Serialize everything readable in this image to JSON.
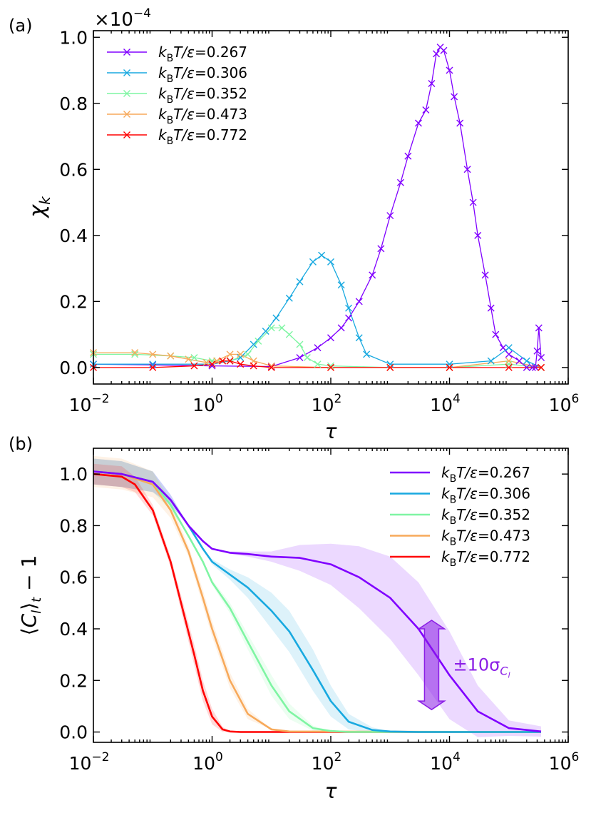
{
  "colors": {
    "t0267": "#8000ff",
    "t0306": "#18a9e0",
    "t0352": "#7ff5a3",
    "t0473": "#f7a95a",
    "t0772": "#ff0000",
    "annotation": "#8b1ee6"
  },
  "chart_data": [
    {
      "type": "line",
      "panel_label": "(a)",
      "title": "",
      "xlabel": "τ",
      "ylabel": "χ_k",
      "x_scale": "log",
      "xlim": [
        0.01,
        1000000
      ],
      "ylim": [
        -0.05,
        1.02
      ],
      "y_multiplier": "×10",
      "y_multiplier_exponent": "−4",
      "x_ticks": [
        0.01,
        1,
        100,
        10000,
        1000000
      ],
      "x_tick_labels": [
        {
          "base": "10",
          "exp": "−2"
        },
        {
          "base": "10",
          "exp": "0"
        },
        {
          "base": "10",
          "exp": "2"
        },
        {
          "base": "10",
          "exp": "4"
        },
        {
          "base": "10",
          "exp": "6"
        }
      ],
      "y_ticks": [
        0,
        0.2,
        0.4,
        0.6,
        0.8,
        1.0
      ],
      "y_tick_labels": [
        "0.0",
        "0.2",
        "0.4",
        "0.6",
        "0.8",
        "1.0"
      ],
      "legend_position": "top-left",
      "marker": "x",
      "series": [
        {
          "name": "k_B T/ε=0.267",
          "label_prefix": "k",
          "label_sub": "B",
          "label_mid": "T/ε=",
          "label_value": "0.267",
          "color_key": "t0267",
          "x": [
            0.01,
            0.1,
            1,
            10,
            30,
            60,
            100,
            150,
            200,
            300,
            500,
            700,
            1000,
            1500,
            2000,
            3000,
            4000,
            5000,
            6000,
            7000,
            8000,
            10000,
            12000,
            15000,
            20000,
            25000,
            30000,
            40000,
            50000,
            60000,
            80000,
            100000,
            150000,
            200000,
            250000,
            280000,
            300000,
            320000,
            350000
          ],
          "y": [
            0.01,
            0.008,
            0.005,
            0.003,
            0.03,
            0.06,
            0.09,
            0.12,
            0.15,
            0.2,
            0.28,
            0.36,
            0.46,
            0.56,
            0.64,
            0.74,
            0.78,
            0.86,
            0.95,
            0.97,
            0.96,
            0.9,
            0.82,
            0.74,
            0.6,
            0.5,
            0.4,
            0.28,
            0.18,
            0.1,
            0.06,
            0.04,
            0.02,
            0.0,
            0.0,
            0.0,
            0.05,
            0.12,
            0.03
          ]
        },
        {
          "name": "k_B T/ε=0.306",
          "label_prefix": "k",
          "label_sub": "B",
          "label_mid": "T/ε=",
          "label_value": "0.306",
          "color_key": "t0306",
          "x": [
            0.01,
            0.1,
            1,
            2,
            3,
            5,
            8,
            12,
            20,
            30,
            50,
            70,
            100,
            150,
            200,
            300,
            400,
            1000,
            10000,
            50000,
            100000,
            200000,
            350000
          ],
          "y": [
            0.01,
            0.01,
            0.01,
            0.02,
            0.03,
            0.07,
            0.11,
            0.15,
            0.21,
            0.26,
            0.32,
            0.34,
            0.32,
            0.25,
            0.18,
            0.09,
            0.04,
            0.01,
            0.01,
            0.02,
            0.06,
            0.02,
            0.0
          ]
        },
        {
          "name": "k_B T/ε=0.352",
          "label_prefix": "k",
          "label_sub": "B",
          "label_mid": "T/ε=",
          "label_value": "0.352",
          "color_key": "t0352",
          "x": [
            0.01,
            0.05,
            0.2,
            0.5,
            1,
            2,
            4,
            6,
            10,
            15,
            20,
            30,
            40,
            60,
            100,
            1000,
            10000,
            100000,
            350000
          ],
          "y": [
            0.04,
            0.04,
            0.035,
            0.03,
            0.02,
            0.02,
            0.04,
            0.08,
            0.12,
            0.12,
            0.1,
            0.07,
            0.03,
            0.01,
            0.005,
            0.0,
            0.0,
            0.01,
            0.0
          ]
        },
        {
          "name": "k_B T/ε=0.473",
          "label_prefix": "k",
          "label_sub": "B",
          "label_mid": "T/ε=",
          "label_value": "0.473",
          "color_key": "t0473",
          "x": [
            0.01,
            0.05,
            0.1,
            0.2,
            0.4,
            0.8,
            1.2,
            2,
            3,
            5,
            10,
            100,
            1000,
            10000,
            100000,
            350000
          ],
          "y": [
            0.045,
            0.045,
            0.04,
            0.035,
            0.025,
            0.015,
            0.02,
            0.04,
            0.04,
            0.02,
            0.005,
            0.0,
            0.0,
            0.0,
            0.02,
            0.0
          ]
        },
        {
          "name": "k_B T/ε=0.772",
          "label_prefix": "k",
          "label_sub": "B",
          "label_mid": "T/ε=",
          "label_value": "0.772",
          "color_key": "t0772",
          "x": [
            0.01,
            0.1,
            0.5,
            1,
            1.5,
            2,
            3,
            5,
            10,
            100,
            1000,
            10000,
            100000,
            350000
          ],
          "y": [
            0.0,
            0.0,
            0.005,
            0.01,
            0.02,
            0.02,
            0.01,
            0.005,
            0.0,
            0.0,
            0.0,
            0.0,
            0.0,
            0.0
          ]
        }
      ]
    },
    {
      "type": "line",
      "panel_label": "(b)",
      "title": "",
      "xlabel": "τ",
      "ylabel": "⟨C_l⟩_t − 1",
      "x_scale": "log",
      "xlim": [
        0.01,
        1000000
      ],
      "ylim": [
        -0.04,
        1.1
      ],
      "x_ticks": [
        0.01,
        1,
        100,
        10000,
        1000000
      ],
      "x_tick_labels": [
        {
          "base": "10",
          "exp": "−2"
        },
        {
          "base": "10",
          "exp": "0"
        },
        {
          "base": "10",
          "exp": "2"
        },
        {
          "base": "10",
          "exp": "4"
        },
        {
          "base": "10",
          "exp": "6"
        }
      ],
      "y_ticks": [
        0,
        0.2,
        0.4,
        0.6,
        0.8,
        1.0
      ],
      "y_tick_labels": [
        "0.0",
        "0.2",
        "0.4",
        "0.6",
        "0.8",
        "1.0"
      ],
      "legend_position": "top-right",
      "band": "shaded ±10σ",
      "annotation": {
        "text": "±10σ",
        "sub": "C",
        "subsub": "l",
        "tau": 5000,
        "y_low": 0.12,
        "y_high": 0.4
      },
      "series": [
        {
          "name": "k_B T/ε=0.267",
          "label_prefix": "k",
          "label_sub": "B",
          "label_mid": "T/ε=",
          "label_value": "0.267",
          "color_key": "t0267",
          "x": [
            0.01,
            0.03,
            0.1,
            0.2,
            0.4,
            0.7,
            1,
            2,
            4,
            10,
            30,
            100,
            300,
            1000,
            3000,
            10000,
            30000,
            100000,
            350000
          ],
          "y": [
            1.01,
            1.0,
            0.97,
            0.9,
            0.8,
            0.74,
            0.71,
            0.695,
            0.69,
            0.68,
            0.675,
            0.65,
            0.6,
            0.52,
            0.4,
            0.22,
            0.08,
            0.015,
            0.002
          ],
          "band": [
            0.05,
            0.05,
            0.04,
            0.02,
            0.0,
            0.0,
            0.0,
            0.005,
            0.01,
            0.02,
            0.05,
            0.08,
            0.12,
            0.16,
            0.18,
            0.17,
            0.1,
            0.03,
            0.02
          ]
        },
        {
          "name": "k_B T/ε=0.306",
          "label_prefix": "k",
          "label_sub": "B",
          "label_mid": "T/ε=",
          "label_value": "0.306",
          "color_key": "t0306",
          "x": [
            0.01,
            0.03,
            0.1,
            0.2,
            0.4,
            0.7,
            1,
            2,
            4,
            10,
            20,
            50,
            100,
            200,
            500,
            1000,
            3000,
            350000
          ],
          "y": [
            1.01,
            1.0,
            0.97,
            0.9,
            0.8,
            0.71,
            0.66,
            0.61,
            0.56,
            0.47,
            0.39,
            0.24,
            0.12,
            0.04,
            0.008,
            0.002,
            0.0,
            0.0
          ],
          "band": [
            0.05,
            0.05,
            0.04,
            0.02,
            0.0,
            0.0,
            0.01,
            0.02,
            0.04,
            0.07,
            0.08,
            0.08,
            0.06,
            0.03,
            0.01,
            0.0,
            0.0,
            0.0
          ]
        },
        {
          "name": "k_B T/ε=0.352",
          "label_prefix": "k",
          "label_sub": "B",
          "label_mid": "T/ε=",
          "label_value": "0.352",
          "color_key": "t0352",
          "x": [
            0.01,
            0.03,
            0.1,
            0.2,
            0.4,
            0.7,
            1,
            2,
            4,
            10,
            20,
            50,
            100,
            200,
            350000
          ],
          "y": [
            1.01,
            1.0,
            0.97,
            0.88,
            0.76,
            0.66,
            0.58,
            0.48,
            0.35,
            0.18,
            0.08,
            0.015,
            0.004,
            0.0,
            0.0
          ],
          "band": [
            0.05,
            0.05,
            0.04,
            0.02,
            0.0,
            0.0,
            0.01,
            0.02,
            0.03,
            0.04,
            0.03,
            0.01,
            0.0,
            0.0,
            0.0
          ]
        },
        {
          "name": "k_B T/ε=0.473",
          "label_prefix": "k",
          "label_sub": "B",
          "label_mid": "T/ε=",
          "label_value": "0.473",
          "color_key": "t0473",
          "x": [
            0.01,
            0.03,
            0.1,
            0.2,
            0.4,
            0.7,
            1,
            2,
            4,
            10,
            20,
            350000
          ],
          "y": [
            1.01,
            1.0,
            0.96,
            0.86,
            0.7,
            0.52,
            0.4,
            0.2,
            0.07,
            0.01,
            0.002,
            0.0
          ],
          "band": [
            0.06,
            0.06,
            0.05,
            0.03,
            0.02,
            0.03,
            0.03,
            0.03,
            0.02,
            0.0,
            0.0,
            0.0
          ]
        },
        {
          "name": "k_B T/ε=0.772",
          "label_prefix": "k",
          "label_sub": "B",
          "label_mid": "T/ε=",
          "label_value": "0.772",
          "color_key": "t0772",
          "x": [
            0.01,
            0.03,
            0.05,
            0.1,
            0.2,
            0.3,
            0.5,
            0.7,
            1,
            1.5,
            2,
            3,
            350000
          ],
          "y": [
            1.0,
            0.99,
            0.96,
            0.86,
            0.66,
            0.5,
            0.3,
            0.16,
            0.06,
            0.01,
            0.002,
            0.0,
            0.0
          ],
          "band": [
            0.04,
            0.04,
            0.03,
            0.02,
            0.02,
            0.03,
            0.04,
            0.04,
            0.03,
            0.01,
            0.0,
            0.0,
            0.0
          ]
        }
      ]
    }
  ]
}
